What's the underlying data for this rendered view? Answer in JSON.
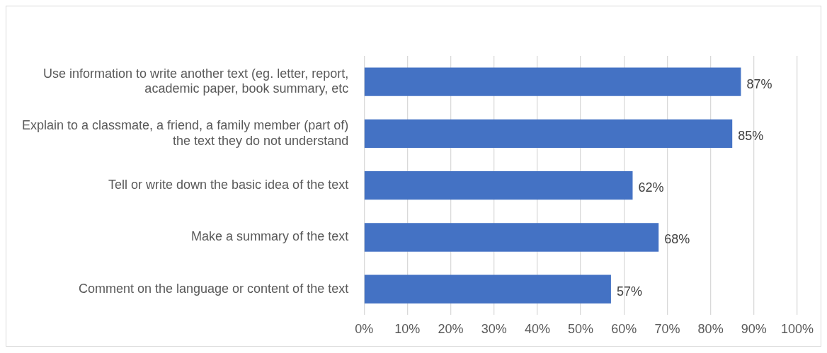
{
  "chart_data": {
    "type": "bar",
    "orientation": "horizontal",
    "categories": [
      "Use information to write another text (eg. letter, report, academic paper, book summary, etc",
      "Explain to a classmate, a friend, a family member (part of) the text they do not understand",
      "Tell or write down the basic idea of the text",
      "Make a summary of the text",
      "Comment on the language or content of the text"
    ],
    "values": [
      87,
      85,
      62,
      68,
      57
    ],
    "value_labels": [
      "87%",
      "85%",
      "62%",
      "68%",
      "57%"
    ],
    "color": "#4472c4",
    "xlim": [
      0,
      100
    ],
    "xticks": [
      {
        "value": 0,
        "label": "0%"
      },
      {
        "value": 10,
        "label": "10%"
      },
      {
        "value": 20,
        "label": "20%"
      },
      {
        "value": 30,
        "label": "30%"
      },
      {
        "value": 40,
        "label": "40%"
      },
      {
        "value": 50,
        "label": "50%"
      },
      {
        "value": 60,
        "label": "60%"
      },
      {
        "value": 70,
        "label": "70%"
      },
      {
        "value": 80,
        "label": "80%"
      },
      {
        "value": 90,
        "label": "90%"
      },
      {
        "value": 100,
        "label": "100%"
      }
    ],
    "grid": "x",
    "legend": false
  }
}
